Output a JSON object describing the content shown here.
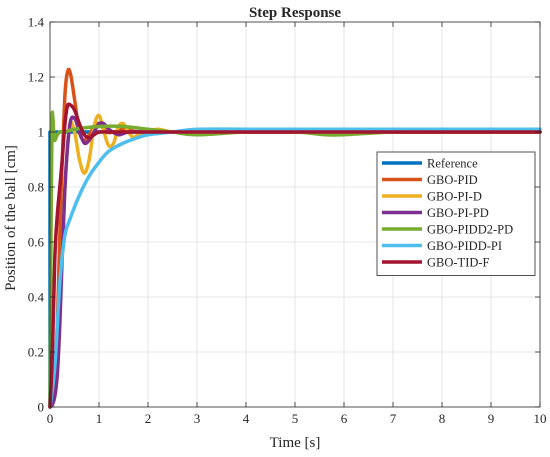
{
  "chart_data": {
    "type": "line",
    "title": "Step Response",
    "xlabel": "Time [s]",
    "ylabel": "Position of the ball [cm]",
    "xlim": [
      0,
      10
    ],
    "ylim": [
      0,
      1.4
    ],
    "xticks": [
      0,
      1,
      2,
      3,
      4,
      5,
      6,
      7,
      8,
      9,
      10
    ],
    "yticks": [
      0,
      0.2,
      0.4,
      0.6,
      0.8,
      1,
      1.2,
      1.4
    ],
    "xtick_labels": [
      "0",
      "1",
      "2",
      "3",
      "4",
      "5",
      "6",
      "7",
      "8",
      "9",
      "10"
    ],
    "ytick_labels": [
      "0",
      "0.2",
      "0.4",
      "0.6",
      "0.8",
      "1",
      "1.2",
      "1.4"
    ],
    "grid": true,
    "legend_position": "center-right",
    "series": [
      {
        "name": "Reference",
        "color": "#0072BD",
        "x": [
          0,
          0.0001,
          10
        ],
        "y": [
          0,
          1,
          1
        ]
      },
      {
        "name": "GBO-PID",
        "color": "#D95319",
        "x": [
          0,
          0.08,
          0.15,
          0.22,
          0.3,
          0.36,
          0.42,
          0.5,
          0.6,
          0.7,
          0.8,
          0.9,
          1.0,
          1.15,
          1.3,
          1.5,
          1.8,
          2.2,
          3,
          5,
          7,
          10
        ],
        "y": [
          0,
          0.05,
          0.3,
          0.75,
          1.12,
          1.22,
          1.21,
          1.12,
          1.0,
          0.97,
          0.99,
          1.02,
          1.03,
          1.0,
          1.0,
          1.01,
          1.0,
          1.0,
          1.0,
          1.0,
          1.0,
          1.0
        ]
      },
      {
        "name": "GBO-PI-D",
        "color": "#EDB120",
        "x": [
          0,
          0.1,
          0.2,
          0.3,
          0.4,
          0.5,
          0.6,
          0.7,
          0.8,
          0.9,
          1.0,
          1.1,
          1.2,
          1.3,
          1.4,
          1.5,
          1.6,
          1.7,
          1.8,
          2.0,
          2.2,
          2.5,
          3,
          5,
          7,
          10
        ],
        "y": [
          0,
          0.05,
          0.35,
          0.78,
          1.02,
          1.0,
          0.9,
          0.85,
          0.9,
          1.02,
          1.06,
          1.0,
          0.95,
          0.96,
          1.02,
          1.03,
          1.0,
          0.98,
          0.99,
          1.0,
          1.01,
          1.0,
          1.0,
          1.0,
          1.0,
          1.0
        ]
      },
      {
        "name": "GBO-PI-PD",
        "color": "#7E2F8E",
        "x": [
          0,
          0.05,
          0.1,
          0.15,
          0.2,
          0.3,
          0.4,
          0.5,
          0.6,
          0.7,
          0.8,
          0.9,
          1.0,
          1.1,
          1.2,
          1.4,
          1.6,
          2.0,
          3,
          5,
          7,
          10
        ],
        "y": [
          0,
          0.01,
          0.04,
          0.12,
          0.3,
          0.78,
          1.02,
          1.05,
          1.0,
          0.96,
          0.97,
          1.0,
          1.03,
          1.03,
          1.01,
          0.99,
          1.0,
          1.0,
          1.0,
          1.0,
          1.0,
          1.0
        ]
      },
      {
        "name": "GBO-PIDD2-PD",
        "color": "#77AC30",
        "x": [
          0,
          0.02,
          0.04,
          0.06,
          0.08,
          0.1,
          0.15,
          0.2,
          0.3,
          0.5,
          1.0,
          1.5,
          2.0,
          2.5,
          3.0,
          4.0,
          5.0,
          5.6,
          6.0,
          7.0,
          8.0,
          9.0,
          10
        ],
        "y": [
          0,
          0.6,
          1.03,
          1.05,
          0.98,
          0.97,
          0.99,
          1.0,
          1.0,
          1.01,
          1.02,
          1.02,
          1.01,
          1.0,
          0.99,
          1.0,
          1.0,
          0.99,
          0.99,
          1.0,
          1.0,
          1.0,
          1.0
        ]
      },
      {
        "name": "GBO-PIDD-PI",
        "color": "#4DBEEE",
        "x": [
          0,
          0.1,
          0.2,
          0.3,
          0.4,
          0.6,
          0.8,
          1.0,
          1.2,
          1.5,
          1.8,
          2.0,
          2.5,
          3.0,
          4.0,
          5.0,
          6.0,
          7.0,
          8.0,
          9.0,
          10
        ],
        "y": [
          0,
          0.15,
          0.45,
          0.62,
          0.68,
          0.77,
          0.84,
          0.89,
          0.93,
          0.96,
          0.98,
          0.99,
          1.0,
          1.01,
          1.01,
          1.01,
          1.01,
          1.01,
          1.01,
          1.01,
          1.01
        ]
      },
      {
        "name": "GBO-TID-F",
        "color": "#A2142F",
        "x": [
          0,
          0.05,
          0.1,
          0.15,
          0.2,
          0.25,
          0.3,
          0.35,
          0.4,
          0.5,
          0.6,
          0.7,
          0.8,
          0.9,
          1.0,
          1.2,
          1.5,
          2.0,
          3,
          5,
          7,
          10
        ],
        "y": [
          0,
          0.2,
          0.55,
          0.7,
          0.8,
          0.9,
          1.02,
          1.09,
          1.1,
          1.08,
          1.03,
          0.99,
          0.98,
          0.99,
          1.0,
          1.0,
          1.0,
          1.0,
          1.0,
          1.0,
          1.0,
          1.0
        ]
      }
    ]
  }
}
